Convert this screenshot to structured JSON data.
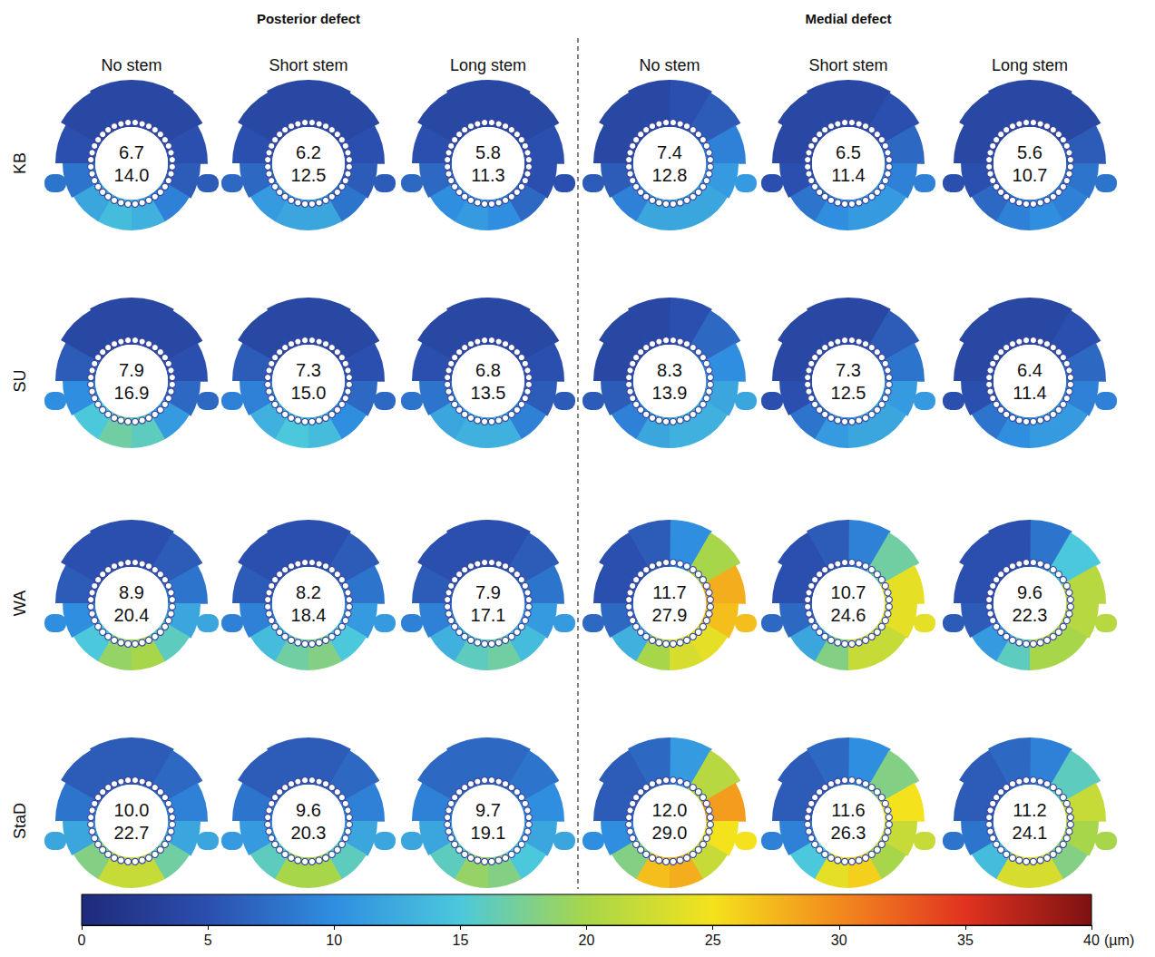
{
  "chart_data": {
    "type": "micromotion_map",
    "groups": [
      {
        "title": "Posterior defect",
        "columns": [
          "No stem",
          "Short stem",
          "Long stem"
        ]
      },
      {
        "title": "Medial defect",
        "columns": [
          "No stem",
          "Short stem",
          "Long stem"
        ]
      }
    ],
    "rows": [
      {
        "label": "KB",
        "panels": [
          {
            "values": [
              6.7,
              14.0
            ],
            "value_labels": [
              "6.7",
              "14.0"
            ],
            "sectors": [
              4,
              4,
              5,
              6,
              9,
              13,
              14,
              12,
              8,
              5,
              4,
              4
            ]
          },
          {
            "values": [
              6.2,
              12.5
            ],
            "value_labels": [
              "6.2",
              "12.5"
            ],
            "sectors": [
              4,
              4,
              5,
              6,
              8,
              12,
              12,
              11,
              7,
              5,
              4,
              4
            ]
          },
          {
            "values": [
              5.8,
              11.3
            ],
            "value_labels": [
              "5.8",
              "11.3"
            ],
            "sectors": [
              4,
              4,
              5,
              5,
              7,
              10,
              11,
              10,
              7,
              5,
              4,
              4
            ]
          },
          {
            "values": [
              7.4,
              12.8
            ],
            "value_labels": [
              "7.4",
              "12.8"
            ],
            "sectors": [
              5,
              6,
              9,
              11,
              12,
              12,
              12,
              9,
              6,
              4,
              4,
              4
            ]
          },
          {
            "values": [
              6.5,
              11.4
            ],
            "value_labels": [
              "6.5",
              "11.4"
            ],
            "sectors": [
              4,
              5,
              7,
              9,
              11,
              11,
              10,
              8,
              5,
              4,
              4,
              4
            ]
          },
          {
            "values": [
              5.6,
              10.7
            ],
            "value_labels": [
              "5.6",
              "10.7"
            ],
            "sectors": [
              4,
              4,
              6,
              8,
              9,
              10,
              9,
              7,
              5,
              4,
              4,
              4
            ]
          }
        ]
      },
      {
        "label": "SU",
        "panels": [
          {
            "values": [
              7.9,
              16.9
            ],
            "value_labels": [
              "7.9",
              "16.9"
            ],
            "sectors": [
              4,
              4,
              5,
              7,
              11,
              16,
              17,
              15,
              10,
              6,
              4,
              4
            ]
          },
          {
            "values": [
              7.3,
              15.0
            ],
            "value_labels": [
              "7.3",
              "15.0"
            ],
            "sectors": [
              4,
              4,
              5,
              7,
              10,
              14,
              15,
              13,
              9,
              6,
              4,
              4
            ]
          },
          {
            "values": [
              6.8,
              13.5
            ],
            "value_labels": [
              "6.8",
              "13.5"
            ],
            "sectors": [
              4,
              4,
              5,
              6,
              9,
              13,
              13,
              12,
              8,
              5,
              4,
              4
            ]
          },
          {
            "values": [
              8.3,
              13.9
            ],
            "value_labels": [
              "8.3",
              "13.9"
            ],
            "sectors": [
              5,
              7,
              10,
              12,
              13,
              13,
              12,
              9,
              6,
              4,
              4,
              4
            ]
          },
          {
            "values": [
              7.3,
              12.5
            ],
            "value_labels": [
              "7.3",
              "12.5"
            ],
            "sectors": [
              4,
              6,
              8,
              11,
              12,
              12,
              11,
              8,
              5,
              4,
              4,
              4
            ]
          },
          {
            "values": [
              6.4,
              11.4
            ],
            "value_labels": [
              "6.4",
              "11.4"
            ],
            "sectors": [
              4,
              5,
              7,
              9,
              11,
              11,
              10,
              8,
              5,
              4,
              4,
              4
            ]
          }
        ]
      },
      {
        "label": "WA",
        "panels": [
          {
            "values": [
              8.9,
              20.4
            ],
            "value_labels": [
              "8.9",
              "20.4"
            ],
            "sectors": [
              5,
              6,
              8,
              12,
              16,
              20,
              19,
              15,
              10,
              6,
              5,
              5
            ]
          },
          {
            "values": [
              8.2,
              18.4
            ],
            "value_labels": [
              "8.2",
              "18.4"
            ],
            "sectors": [
              5,
              6,
              8,
              11,
              15,
              18,
              17,
              14,
              9,
              6,
              5,
              5
            ]
          },
          {
            "values": [
              7.9,
              17.1
            ],
            "value_labels": [
              "7.9",
              "17.1"
            ],
            "sectors": [
              5,
              6,
              8,
              11,
              14,
              17,
              16,
              13,
              9,
              6,
              5,
              5
            ]
          },
          {
            "values": [
              11.7,
              27.9
            ],
            "value_labels": [
              "11.7",
              "27.9"
            ],
            "sectors": [
              10,
              20,
              28,
              27,
              24,
              23,
              20,
              13,
              7,
              5,
              5,
              6
            ]
          },
          {
            "values": [
              10.7,
              24.6
            ],
            "value_labels": [
              "10.7",
              "24.6"
            ],
            "sectors": [
              9,
              17,
              24,
              24,
              22,
              22,
              18,
              12,
              7,
              5,
              5,
              6
            ]
          },
          {
            "values": [
              9.6,
              22.3
            ],
            "value_labels": [
              "9.6",
              "22.3"
            ],
            "sectors": [
              8,
              15,
              21,
              21,
              20,
              20,
              16,
              11,
              6,
              5,
              5,
              5
            ]
          }
        ]
      },
      {
        "label": "StaD",
        "panels": [
          {
            "values": [
              10.0,
              22.7
            ],
            "value_labels": [
              "10.0",
              "22.7"
            ],
            "sectors": [
              6,
              7,
              9,
              12,
              17,
              22,
              22,
              18,
              12,
              8,
              6,
              6
            ]
          },
          {
            "values": [
              9.6,
              20.3
            ],
            "value_labels": [
              "9.6",
              "20.3"
            ],
            "sectors": [
              6,
              7,
              9,
              12,
              16,
              20,
              20,
              16,
              11,
              8,
              6,
              6
            ]
          },
          {
            "values": [
              9.7,
              19.1
            ],
            "value_labels": [
              "9.7",
              "19.1"
            ],
            "sectors": [
              7,
              8,
              10,
              12,
              15,
              18,
              19,
              16,
              12,
              9,
              7,
              7
            ]
          },
          {
            "values": [
              12.0,
              29.0
            ],
            "value_labels": [
              "12.0",
              "29.0"
            ],
            "sectors": [
              11,
              21,
              29,
              25,
              22,
              28,
              27,
              18,
              10,
              6,
              6,
              7
            ]
          },
          {
            "values": [
              11.6,
              26.3
            ],
            "value_labels": [
              "11.6",
              "26.3"
            ],
            "sectors": [
              10,
              18,
              25,
              22,
              20,
              26,
              24,
              15,
              9,
              6,
              6,
              7
            ]
          },
          {
            "values": [
              11.2,
              24.1
            ],
            "value_labels": [
              "11.2",
              "24.1"
            ],
            "sectors": [
              9,
              16,
              22,
              20,
              18,
              23,
              23,
              14,
              8,
              6,
              6,
              7
            ]
          }
        ]
      }
    ],
    "colorbar": {
      "range": [
        0,
        40
      ],
      "ticks": [
        0,
        5,
        10,
        15,
        20,
        25,
        30,
        35,
        40
      ],
      "label": "(µm)"
    }
  }
}
